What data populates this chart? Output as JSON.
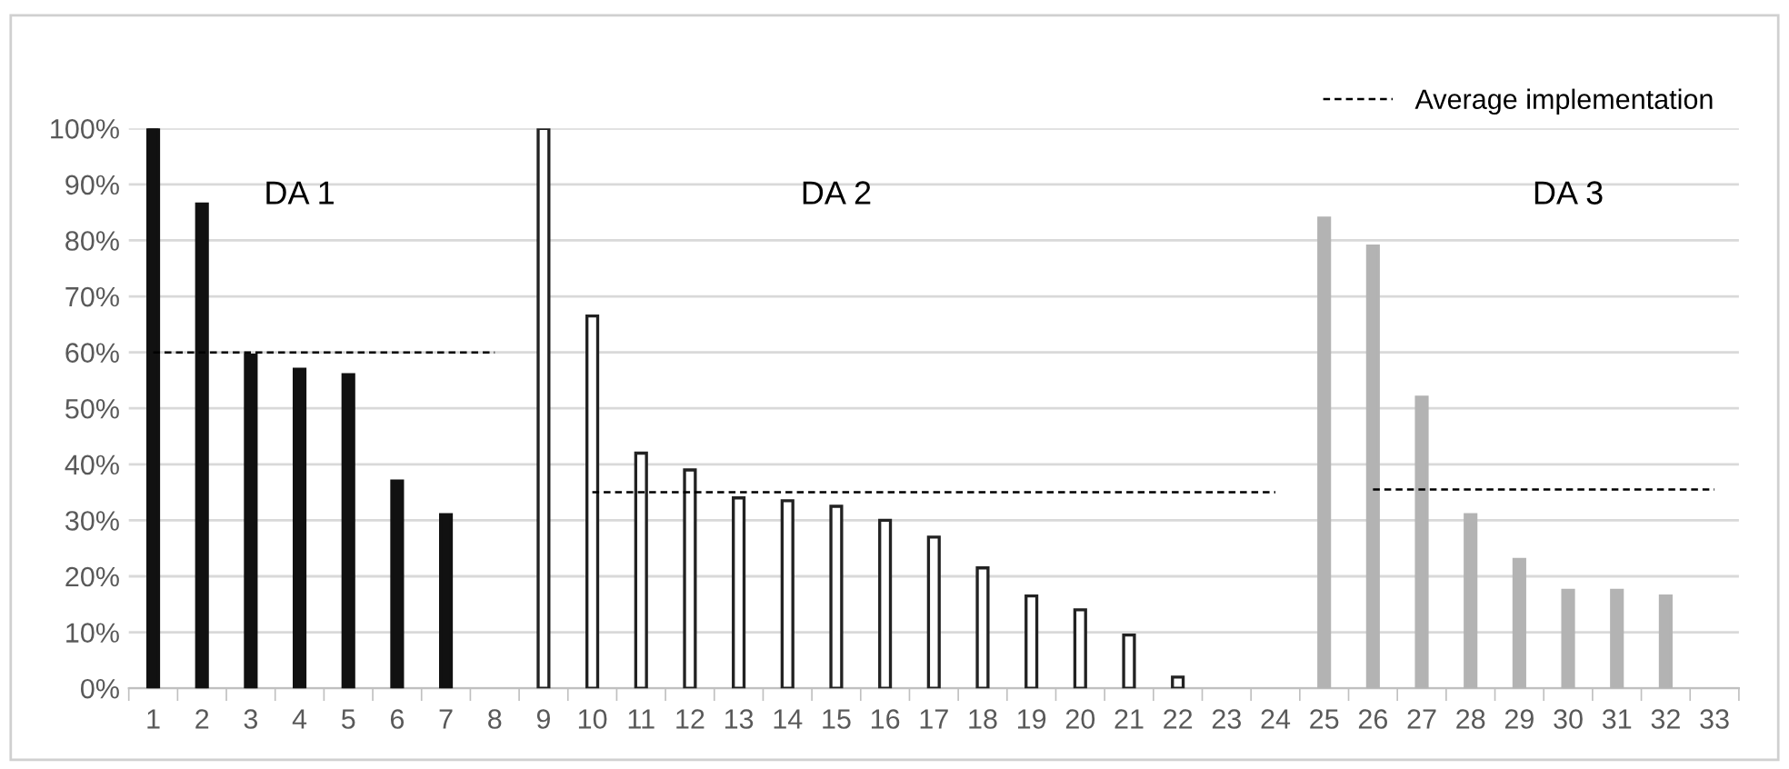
{
  "chart_data": {
    "type": "bar",
    "categories": [
      "1",
      "2",
      "3",
      "4",
      "5",
      "6",
      "7",
      "8",
      "9",
      "10",
      "11",
      "12",
      "13",
      "14",
      "15",
      "16",
      "17",
      "18",
      "19",
      "20",
      "21",
      "22",
      "23",
      "24",
      "25",
      "26",
      "27",
      "28",
      "29",
      "30",
      "31",
      "32",
      "33"
    ],
    "series": [
      {
        "color": "#111111",
        "values": [
          100,
          86.5,
          59.5,
          57,
          56,
          37,
          31,
          null,
          null,
          null,
          null,
          null,
          null,
          null,
          null,
          null,
          null,
          null,
          null,
          null,
          null,
          null,
          null,
          null,
          null,
          null,
          null,
          null,
          null,
          null,
          null,
          null,
          null
        ]
      },
      {
        "color": "#ffffff",
        "values": [
          null,
          null,
          null,
          null,
          null,
          null,
          null,
          null,
          100,
          66.5,
          42,
          39,
          34,
          33.5,
          32.5,
          30,
          27,
          21.5,
          16.5,
          14,
          9.5,
          2,
          null,
          null,
          null,
          null,
          null,
          null,
          null,
          null,
          null,
          null,
          null
        ]
      },
      {
        "color": "#b3b3b3",
        "values": [
          null,
          null,
          null,
          null,
          null,
          null,
          null,
          null,
          null,
          null,
          null,
          null,
          null,
          null,
          null,
          null,
          null,
          null,
          null,
          null,
          null,
          null,
          null,
          null,
          84,
          79,
          52,
          31,
          23,
          17.5,
          17.5,
          16.5,
          null
        ]
      },
      {
        "name": "Average implementation",
        "type": "line",
        "color": "#000000",
        "line_style": "dashed",
        "marker": "none",
        "values": [
          60,
          60,
          60,
          60,
          60,
          60,
          60,
          60,
          null,
          35,
          35,
          35,
          35,
          35,
          35,
          35,
          35,
          35,
          35,
          35,
          35,
          35,
          35,
          35,
          null,
          35.5,
          35.5,
          35.5,
          35.5,
          35.5,
          35.5,
          35.5,
          35.5
        ]
      }
    ],
    "ylim": [
      0,
      100
    ],
    "yticks": [
      {
        "value": 0,
        "label": "0%"
      },
      {
        "value": 10,
        "label": "10%"
      },
      {
        "value": 20,
        "label": "20%"
      },
      {
        "value": 30,
        "label": "30%"
      },
      {
        "value": 40,
        "label": "40%"
      },
      {
        "value": 50,
        "label": "50%"
      },
      {
        "value": 60,
        "label": "60%"
      },
      {
        "value": 70,
        "label": "70%"
      },
      {
        "value": 80,
        "label": "80%"
      },
      {
        "value": 90,
        "label": "90%"
      },
      {
        "value": 100,
        "label": "100%"
      }
    ],
    "annotations": [
      "DA 1",
      "DA 2",
      "DA 3"
    ],
    "grid": "y",
    "legend": "top right"
  }
}
